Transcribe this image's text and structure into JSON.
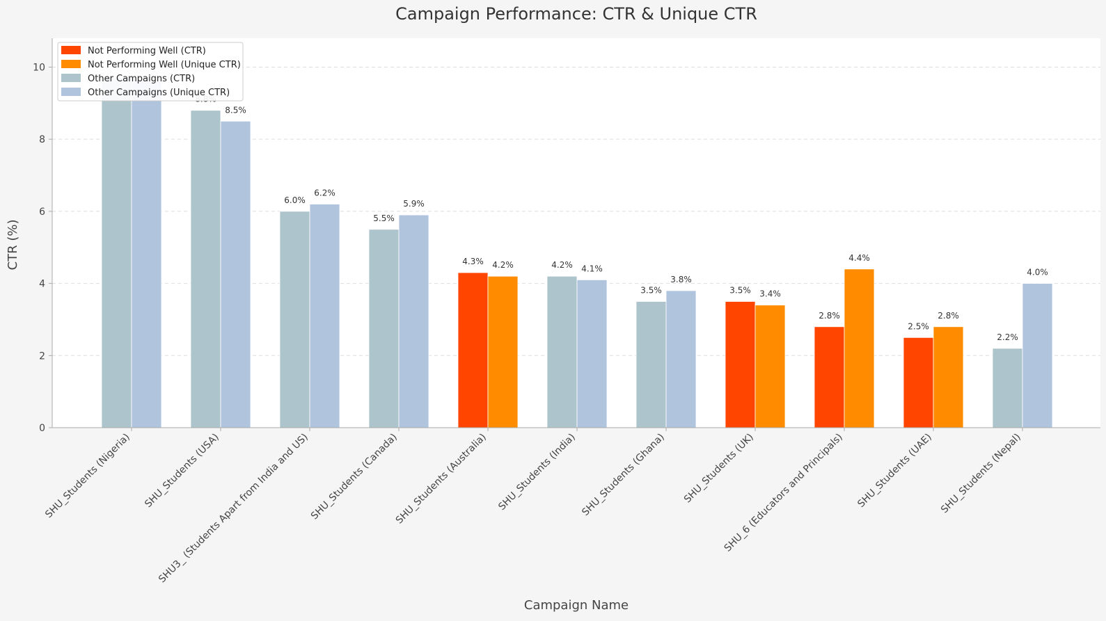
{
  "chart_data": {
    "type": "bar",
    "title": "Campaign Performance: CTR & Unique CTR",
    "xlabel": "Campaign Name",
    "ylabel": "CTR (%)",
    "ylim": [
      0,
      10.8
    ],
    "yticks": [
      0,
      2,
      4,
      6,
      8,
      10
    ],
    "grid": "y",
    "legend_position": "top-left",
    "value_suffix": "%",
    "colors": {
      "not_performing_ctr": "#ff4500",
      "not_performing_unique": "#ff8c00",
      "other_ctr": "#aec4cc",
      "other_unique": "#b0c4de",
      "grid": "#dddddd",
      "axis": "#aaaaaa",
      "text": "#333333"
    },
    "legend": [
      {
        "label": "Not Performing Well (CTR)",
        "color": "#ff4500"
      },
      {
        "label": "Not Performing Well (Unique CTR)",
        "color": "#ff8c00"
      },
      {
        "label": "Other Campaigns (CTR)",
        "color": "#aec4cc"
      },
      {
        "label": "Other Campaigns (Unique CTR)",
        "color": "#b0c4de"
      }
    ],
    "categories": [
      {
        "name": "SHU_Students (Nigeria)",
        "ctr": 9.7,
        "unique_ctr": 9.6,
        "ctr_label": "",
        "unique_label": "",
        "group": "other"
      },
      {
        "name": "SHU_Students (USA)",
        "ctr": 8.8,
        "unique_ctr": 8.5,
        "ctr_label": "8.8%",
        "unique_label": "8.5%",
        "group": "other"
      },
      {
        "name": "SHU3_ (Students Apart from India and US)",
        "ctr": 6.0,
        "unique_ctr": 6.2,
        "ctr_label": "6.0%",
        "unique_label": "6.2%",
        "group": "other"
      },
      {
        "name": "SHU_Students (Canada)",
        "ctr": 5.5,
        "unique_ctr": 5.9,
        "ctr_label": "5.5%",
        "unique_label": "5.9%",
        "group": "other"
      },
      {
        "name": "SHU_Students (Australia)",
        "ctr": 4.3,
        "unique_ctr": 4.2,
        "ctr_label": "4.3%",
        "unique_label": "4.2%",
        "group": "not_performing"
      },
      {
        "name": "SHU_Students (India)",
        "ctr": 4.2,
        "unique_ctr": 4.1,
        "ctr_label": "4.2%",
        "unique_label": "4.1%",
        "group": "other"
      },
      {
        "name": "SHU_Students (Ghana)",
        "ctr": 3.5,
        "unique_ctr": 3.8,
        "ctr_label": "3.5%",
        "unique_label": "3.8%",
        "group": "other"
      },
      {
        "name": "SHU_Students (UK)",
        "ctr": 3.5,
        "unique_ctr": 3.4,
        "ctr_label": "3.5%",
        "unique_label": "3.4%",
        "group": "not_performing"
      },
      {
        "name": "SHU_6 (Educators and Principals)",
        "ctr": 2.8,
        "unique_ctr": 4.4,
        "ctr_label": "2.8%",
        "unique_label": "4.4%",
        "group": "not_performing"
      },
      {
        "name": "SHU_Students (UAE)",
        "ctr": 2.5,
        "unique_ctr": 2.8,
        "ctr_label": "2.5%",
        "unique_label": "2.8%",
        "group": "not_performing"
      },
      {
        "name": "SHU_Students (Nepal)",
        "ctr": 2.2,
        "unique_ctr": 4.0,
        "ctr_label": "2.2%",
        "unique_label": "4.0%",
        "group": "other"
      }
    ]
  }
}
